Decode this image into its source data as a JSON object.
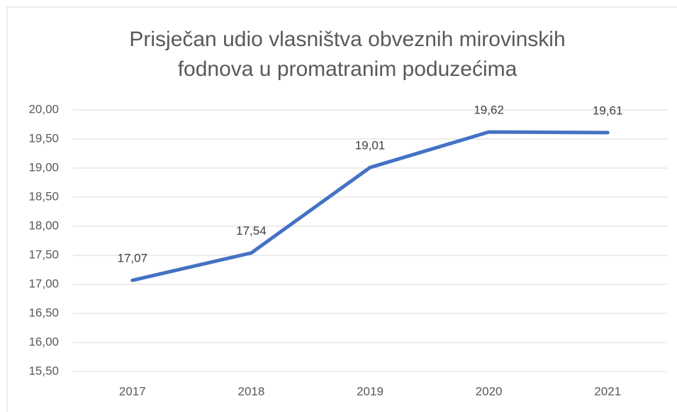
{
  "chart_data": {
    "type": "line",
    "title": [
      "Prisječan udio vlasništva obveznih mirovinskih",
      "fodnova u promatranim poduzećima"
    ],
    "categories": [
      "2017",
      "2018",
      "2019",
      "2020",
      "2021"
    ],
    "values": [
      17.07,
      17.54,
      19.01,
      19.62,
      19.61
    ],
    "value_labels": [
      "17,07",
      "17,54",
      "19,01",
      "19,62",
      "19,61"
    ],
    "color": "#4472c4",
    "ylim": [
      15.5,
      20.0
    ],
    "yticks": [
      {
        "value": 15.5,
        "label": "15,50"
      },
      {
        "value": 16.0,
        "label": "16,00"
      },
      {
        "value": 16.5,
        "label": "16,50"
      },
      {
        "value": 17.0,
        "label": "17,00"
      },
      {
        "value": 17.5,
        "label": "17,50"
      },
      {
        "value": 18.0,
        "label": "18,00"
      },
      {
        "value": 18.5,
        "label": "18,50"
      },
      {
        "value": 19.0,
        "label": "19,00"
      },
      {
        "value": 19.5,
        "label": "19,50"
      },
      {
        "value": 20.0,
        "label": "20,00"
      }
    ],
    "grid": true
  }
}
